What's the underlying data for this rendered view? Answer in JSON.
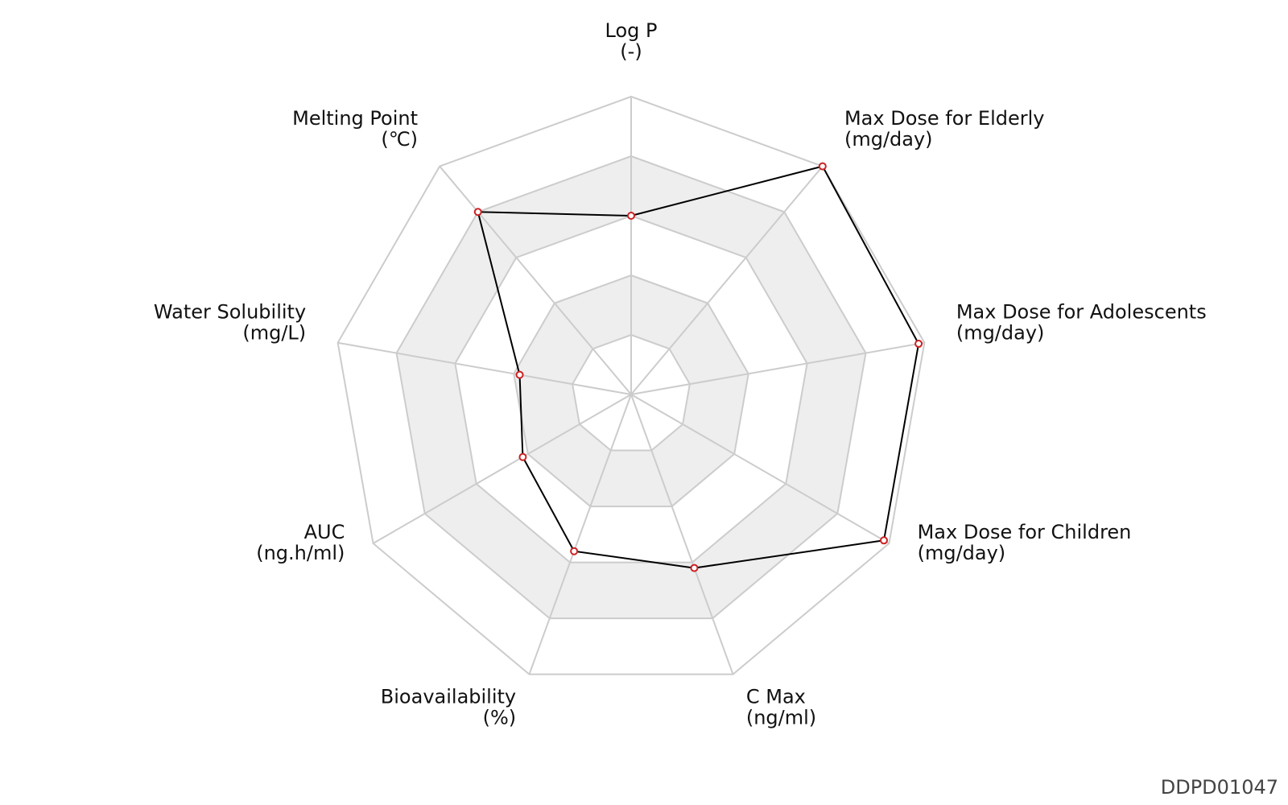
{
  "chart_data": {
    "type": "radar",
    "title": "",
    "axes": [
      {
        "name": "Log P",
        "unit": "(-)"
      },
      {
        "name": "Max Dose for Elderly",
        "unit": "(mg/day)"
      },
      {
        "name": "Max Dose for Adolescents",
        "unit": "(mg/day)"
      },
      {
        "name": "Max Dose for Children",
        "unit": "(mg/day)"
      },
      {
        "name": "C Max",
        "unit": "(ng/ml)"
      },
      {
        "name": "Bioavailability",
        "unit": "(%)"
      },
      {
        "name": "AUC",
        "unit": "(ng.h/ml)"
      },
      {
        "name": "Water Solubility",
        "unit": "(mg/L)"
      },
      {
        "name": "Melting Point",
        "unit": "(℃)"
      }
    ],
    "values": [
      0.6,
      1.0,
      0.98,
      0.98,
      0.62,
      0.56,
      0.42,
      0.38,
      0.8
    ],
    "range": [
      0,
      1
    ],
    "rings": 5,
    "grid": true,
    "colors": {
      "line": "#000000",
      "marker_fill": "#ffffff",
      "marker_edge": "#cc2222",
      "grid": "#cccccc",
      "band": "#eeeeee"
    }
  },
  "watermark": "DDPD01047"
}
